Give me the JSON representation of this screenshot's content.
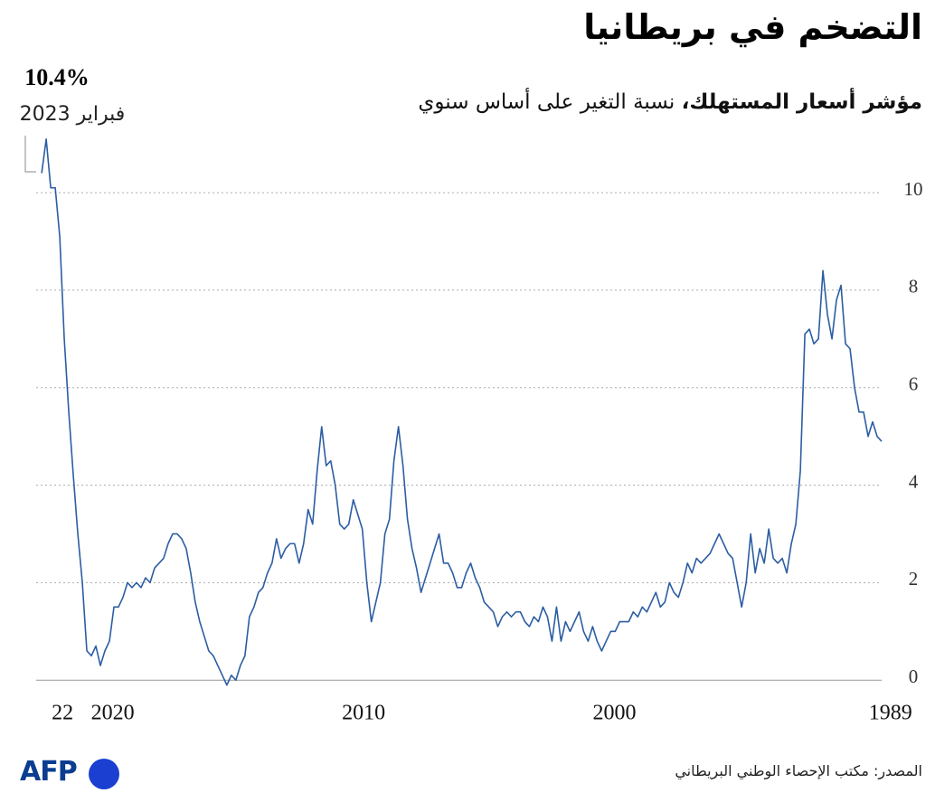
{
  "chart_data": {
    "type": "line",
    "title": "التضخم في بريطانيا",
    "subtitle_bold": "مؤشر أسعار المستهلك،",
    "subtitle": "نسبة التغير على أساس سنوي",
    "source": "المصدر: مكتب الإحصاء الوطني البريطاني",
    "logo": "AFP",
    "annotation": {
      "text": "10.4%",
      "date": "فبراير 2023"
    },
    "x_reversed": true,
    "xlim": [
      1989.35,
      2023.05
    ],
    "xticks": [
      1989,
      2000,
      2010,
      2020,
      {
        "value": 2022,
        "label": "22"
      }
    ],
    "ylim": [
      -0.2,
      11.3
    ],
    "yticks": [
      0,
      2,
      4,
      6,
      8,
      10
    ],
    "grid": true,
    "x": [
      1989.35,
      1989.53,
      1989.71,
      1989.89,
      1990.07,
      1990.25,
      1990.43,
      1990.61,
      1990.79,
      1990.97,
      1991.15,
      1991.33,
      1991.51,
      1991.69,
      1991.87,
      1992.05,
      1992.23,
      1992.41,
      1992.59,
      1992.77,
      1992.95,
      1993.13,
      1993.31,
      1993.49,
      1993.67,
      1993.85,
      1994.03,
      1994.21,
      1994.39,
      1994.57,
      1994.75,
      1994.93,
      1995.11,
      1995.29,
      1995.47,
      1995.65,
      1995.83,
      1996.01,
      1996.19,
      1996.37,
      1996.55,
      1996.73,
      1996.91,
      1997.09,
      1997.27,
      1997.45,
      1997.63,
      1997.81,
      1997.99,
      1998.17,
      1998.35,
      1998.53,
      1998.71,
      1998.89,
      1999.07,
      1999.25,
      1999.43,
      1999.61,
      1999.79,
      1999.97,
      2000.15,
      2000.33,
      2000.51,
      2000.69,
      2000.87,
      2001.05,
      2001.23,
      2001.41,
      2001.59,
      2001.77,
      2001.95,
      2002.13,
      2002.31,
      2002.49,
      2002.67,
      2002.85,
      2003.03,
      2003.21,
      2003.39,
      2003.57,
      2003.75,
      2003.93,
      2004.11,
      2004.29,
      2004.47,
      2004.65,
      2004.83,
      2005.01,
      2005.19,
      2005.37,
      2005.55,
      2005.73,
      2005.91,
      2006.09,
      2006.27,
      2006.45,
      2006.63,
      2006.81,
      2006.99,
      2007.17,
      2007.35,
      2007.53,
      2007.71,
      2007.89,
      2008.07,
      2008.25,
      2008.43,
      2008.61,
      2008.79,
      2008.97,
      2009.15,
      2009.33,
      2009.51,
      2009.69,
      2009.87,
      2010.05,
      2010.23,
      2010.41,
      2010.59,
      2010.77,
      2010.95,
      2011.13,
      2011.31,
      2011.49,
      2011.67,
      2011.85,
      2012.03,
      2012.21,
      2012.39,
      2012.57,
      2012.75,
      2012.93,
      2013.11,
      2013.29,
      2013.47,
      2013.65,
      2013.83,
      2014.01,
      2014.19,
      2014.37,
      2014.55,
      2014.73,
      2014.91,
      2015.09,
      2015.27,
      2015.45,
      2015.63,
      2015.81,
      2015.99,
      2016.17,
      2016.35,
      2016.53,
      2016.71,
      2016.89,
      2017.07,
      2017.25,
      2017.43,
      2017.61,
      2017.79,
      2017.97,
      2018.15,
      2018.33,
      2018.51,
      2018.69,
      2018.87,
      2019.05,
      2019.23,
      2019.41,
      2019.59,
      2019.77,
      2019.95,
      2020.13,
      2020.31,
      2020.49,
      2020.67,
      2020.85,
      2021.03,
      2021.21,
      2021.39,
      2021.57,
      2021.75,
      2021.93,
      2022.11,
      2022.29,
      2022.47,
      2022.65,
      2022.83
    ],
    "series": [
      {
        "name": "CPI",
        "color": "#2c5da3",
        "values": [
          4.9,
          5.0,
          5.3,
          5.0,
          5.5,
          5.5,
          6.0,
          6.8,
          6.9,
          8.1,
          7.8,
          7.0,
          7.5,
          8.4,
          7.0,
          6.9,
          7.2,
          7.1,
          4.3,
          3.2,
          2.8,
          2.2,
          2.5,
          2.4,
          2.5,
          3.1,
          2.4,
          2.7,
          2.2,
          3.0,
          2.0,
          1.5,
          2.0,
          2.5,
          2.6,
          2.8,
          3.0,
          2.8,
          2.6,
          2.5,
          2.4,
          2.5,
          2.2,
          2.4,
          2.0,
          1.7,
          1.8,
          2.0,
          1.6,
          1.5,
          1.8,
          1.6,
          1.4,
          1.5,
          1.3,
          1.4,
          1.2,
          1.2,
          1.2,
          1.0,
          1.0,
          0.8,
          0.6,
          0.8,
          1.1,
          0.8,
          1.0,
          1.4,
          1.2,
          1.0,
          1.2,
          0.8,
          1.5,
          0.8,
          1.3,
          1.5,
          1.2,
          1.3,
          1.1,
          1.2,
          1.4,
          1.4,
          1.3,
          1.4,
          1.3,
          1.1,
          1.4,
          1.5,
          1.6,
          1.9,
          2.1,
          2.4,
          2.2,
          1.9,
          1.9,
          2.2,
          2.4,
          2.4,
          3.0,
          2.7,
          2.4,
          2.1,
          1.8,
          2.3,
          2.7,
          3.3,
          4.4,
          5.2,
          4.5,
          3.3,
          3.0,
          2.0,
          1.6,
          1.2,
          2.0,
          3.1,
          3.4,
          3.7,
          3.2,
          3.1,
          3.2,
          4.0,
          4.5,
          4.4,
          5.2,
          4.3,
          3.2,
          3.5,
          2.8,
          2.4,
          2.8,
          2.8,
          2.7,
          2.5,
          2.9,
          2.4,
          2.2,
          1.9,
          1.8,
          1.5,
          1.3,
          0.5,
          0.3,
          0.0,
          0.1,
          -0.1,
          0.1,
          0.3,
          0.5,
          0.6,
          0.9,
          1.2,
          1.6,
          2.2,
          2.7,
          2.9,
          3.0,
          3.0,
          2.8,
          2.5,
          2.4,
          2.3,
          2.0,
          2.1,
          1.9,
          2.0,
          1.9,
          2.0,
          1.7,
          1.5,
          1.5,
          0.8,
          0.6,
          0.3,
          0.7,
          0.5,
          0.6,
          2.0,
          3.0,
          4.2,
          5.5,
          7.0,
          9.1,
          10.1,
          10.1,
          11.1,
          10.4
        ]
      }
    ]
  }
}
